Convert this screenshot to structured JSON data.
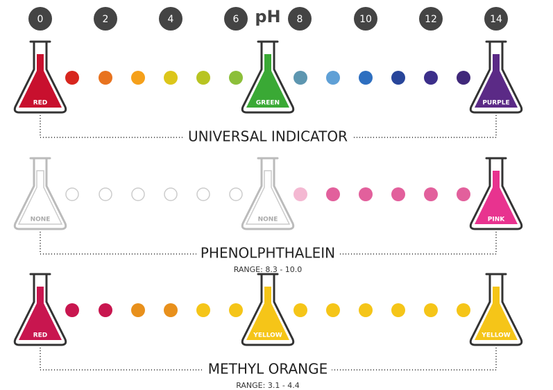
{
  "ph_scale": {
    "title": "pH",
    "ticks": [
      0,
      2,
      4,
      6,
      8,
      10,
      12,
      14
    ]
  },
  "indicators": [
    {
      "name": "UNIVERSAL INDICATOR",
      "flasks": [
        {
          "label": "RED",
          "color": "#c8102e"
        },
        {
          "label": "GREEN",
          "color": "#3aa935"
        },
        {
          "label": "PURPLE",
          "color": "#5b2a86"
        }
      ],
      "dots": [
        "#d7261e",
        "#e8731f",
        "#f5a01a",
        "#dcc61a",
        "#b8c422",
        "#8cbf3a",
        "#5d96b0",
        "#5fa0d6",
        "#2e6fc0",
        "#28459a",
        "#3c2f8a",
        "#40287a"
      ]
    },
    {
      "name": "PHENOLPHTHALEIN",
      "range": "RANGE: 8.3 - 10.0",
      "flasks": [
        {
          "label": "NONE",
          "color": "#ffffff"
        },
        {
          "label": "NONE",
          "color": "#ffffff"
        },
        {
          "label": "PINK",
          "color": "#e8338f"
        }
      ],
      "dots": [
        "#ffffff",
        "#ffffff",
        "#ffffff",
        "#ffffff",
        "#ffffff",
        "#ffffff",
        "#f4b8d2",
        "#e2609c",
        "#e2609c",
        "#e2609c",
        "#e2609c",
        "#e2609c"
      ]
    },
    {
      "name": "METHYL ORANGE",
      "range": "RANGE: 3.1 - 4.4",
      "flasks": [
        {
          "label": "RED",
          "color": "#c8164f"
        },
        {
          "label": "YELLOW",
          "color": "#f5c518"
        },
        {
          "label": "YELLOW",
          "color": "#f5c518"
        }
      ],
      "dots": [
        "#c8164f",
        "#c8164f",
        "#e8901c",
        "#e8901c",
        "#f5c518",
        "#f5c518",
        "#f5c518",
        "#f5c518",
        "#f5c518",
        "#f5c518",
        "#f5c518",
        "#f5c518"
      ]
    }
  ]
}
